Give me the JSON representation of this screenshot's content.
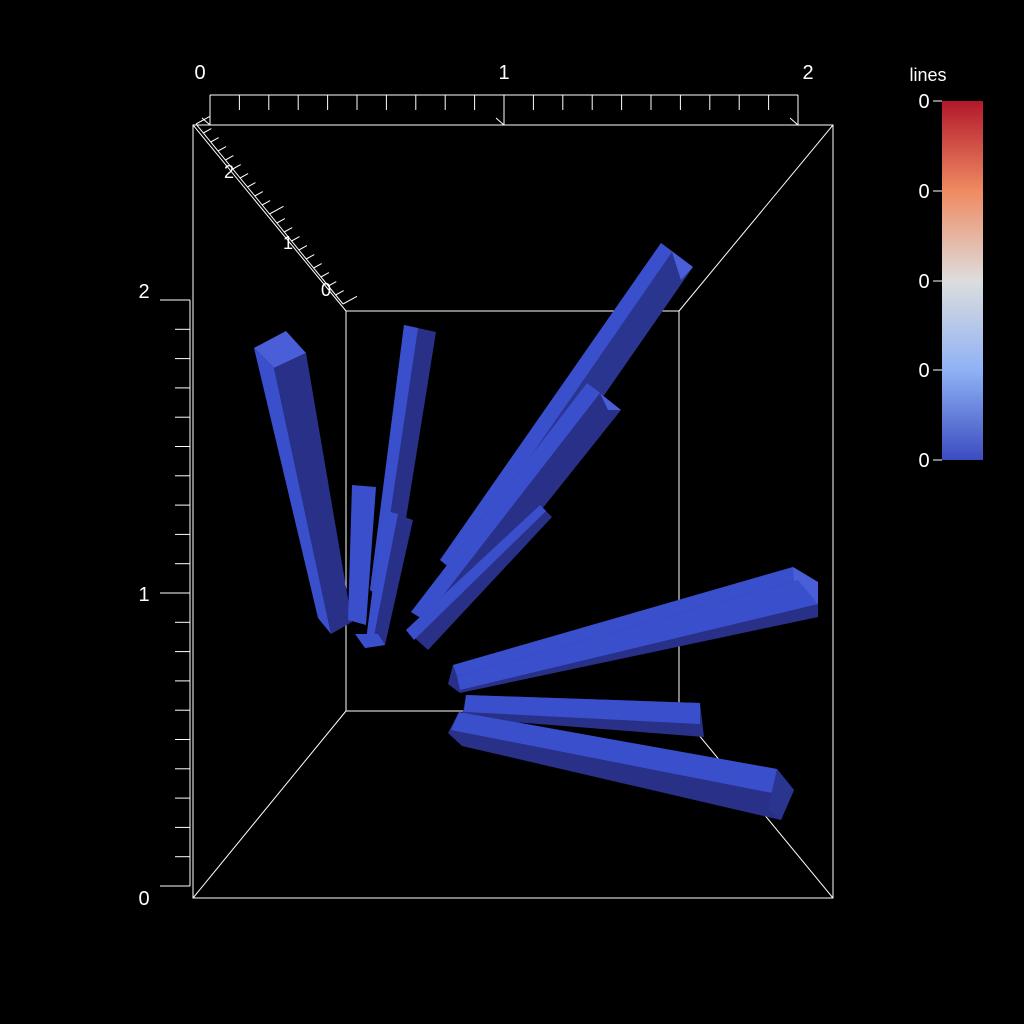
{
  "chart_data": {
    "type": "3d-tubes",
    "axes": {
      "x": {
        "tick_labels": [
          "0",
          "1",
          "2"
        ]
      },
      "y": {
        "tick_labels": [
          "0",
          "1",
          "2"
        ]
      },
      "z": {
        "tick_labels": [
          "2",
          "1",
          "0"
        ]
      }
    },
    "colorbar": {
      "title": "lines",
      "tick_labels": [
        "0",
        "0",
        "0",
        "0",
        "0"
      ],
      "colors": [
        "#b2182b",
        "#ef8a62",
        "#dddddd",
        "#8fb2f5",
        "#3b4cc0"
      ]
    },
    "tube_color": "#3a4fcc",
    "tube_shadow_color": "#242f80",
    "tube_count": 9
  }
}
